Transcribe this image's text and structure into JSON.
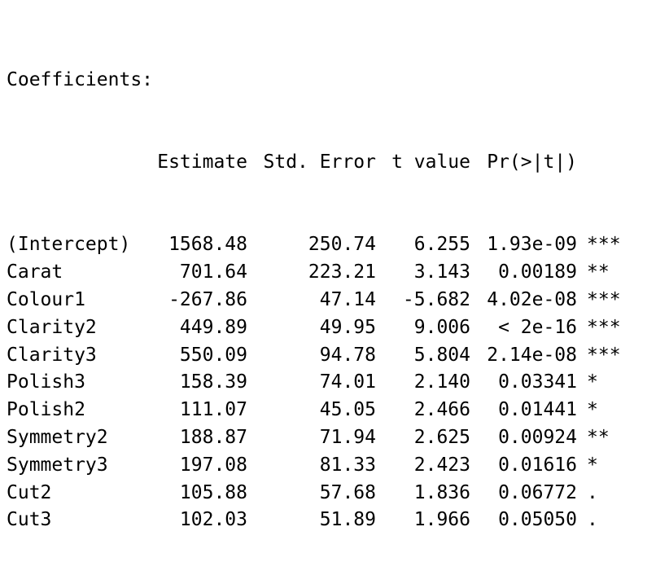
{
  "title": "Coefficients:",
  "headers": {
    "estimate": "Estimate",
    "std_error": "Std. Error",
    "t_value": "t value",
    "p_value": "Pr(>|t|)"
  },
  "rows": [
    {
      "term": "(Intercept)",
      "estimate": "1568.48",
      "std_error": "250.74",
      "t_value": "6.255",
      "p_value": "1.93e-09",
      "signif": "***"
    },
    {
      "term": "Carat",
      "estimate": "701.64",
      "std_error": "223.21",
      "t_value": "3.143",
      "p_value": "0.00189",
      "signif": "**"
    },
    {
      "term": "Colour1",
      "estimate": "-267.86",
      "std_error": "47.14",
      "t_value": "-5.682",
      "p_value": "4.02e-08",
      "signif": "***"
    },
    {
      "term": "Clarity2",
      "estimate": "449.89",
      "std_error": "49.95",
      "t_value": "9.006",
      "p_value": "< 2e-16",
      "signif": "***"
    },
    {
      "term": "Clarity3",
      "estimate": "550.09",
      "std_error": "94.78",
      "t_value": "5.804",
      "p_value": "2.14e-08",
      "signif": "***"
    },
    {
      "term": "Polish3",
      "estimate": "158.39",
      "std_error": "74.01",
      "t_value": "2.140",
      "p_value": "0.03341",
      "signif": "*"
    },
    {
      "term": "Polish2",
      "estimate": "111.07",
      "std_error": "45.05",
      "t_value": "2.466",
      "p_value": "0.01441",
      "signif": "*"
    },
    {
      "term": "Symmetry2",
      "estimate": "188.87",
      "std_error": "71.94",
      "t_value": "2.625",
      "p_value": "0.00924",
      "signif": "**"
    },
    {
      "term": "Symmetry3",
      "estimate": "197.08",
      "std_error": "81.33",
      "t_value": "2.423",
      "p_value": "0.01616",
      "signif": "*"
    },
    {
      "term": "Cut2",
      "estimate": "105.88",
      "std_error": "57.68",
      "t_value": "1.836",
      "p_value": "0.06772",
      "signif": "."
    },
    {
      "term": "Cut3",
      "estimate": "102.03",
      "std_error": "51.89",
      "t_value": "1.966",
      "p_value": "0.05050",
      "signif": "."
    }
  ]
}
